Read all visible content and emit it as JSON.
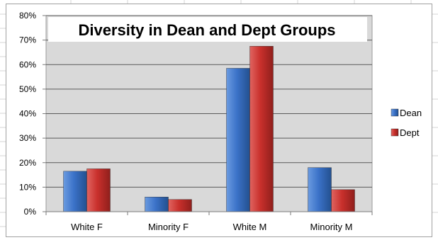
{
  "chart_data": {
    "type": "bar",
    "title": "Diversity in Dean and Dept Groups",
    "categories": [
      "White F",
      "Minority F",
      "White M",
      "Minority M"
    ],
    "series": [
      {
        "name": "Dean",
        "values": [
          0.165,
          0.06,
          0.585,
          0.18
        ],
        "color": "#3b72c8"
      },
      {
        "name": "Dept",
        "values": [
          0.175,
          0.05,
          0.675,
          0.09
        ],
        "color": "#c9302c"
      }
    ],
    "yticks": [
      "0%",
      "10%",
      "20%",
      "30%",
      "40%",
      "50%",
      "60%",
      "70%",
      "80%"
    ],
    "ylim": [
      0,
      0.8
    ],
    "xlabel": "",
    "ylabel": "",
    "grid": true,
    "legend_position": "right",
    "plot_background": "#d9d9d9"
  }
}
